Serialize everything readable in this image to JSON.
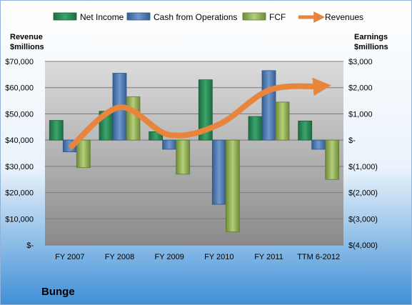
{
  "chart_data": {
    "type": "bar",
    "title": "Bunge",
    "left_axis_label": [
      "Revenue",
      "$millions"
    ],
    "right_axis_label": [
      "Earnings",
      "$millions"
    ],
    "categories": [
      "FY 2007",
      "FY 2008",
      "FY 2009",
      "FY 2010",
      "FY 2011",
      "TTM 6-2012"
    ],
    "left_ylim": [
      0,
      70000
    ],
    "right_ylim": [
      -4000,
      3000
    ],
    "left_ticks": [
      "$-",
      "$10,000",
      "$20,000",
      "$30,000",
      "$40,000",
      "$50,000",
      "$60,000",
      "$70,000"
    ],
    "right_ticks": [
      "$(4,000)",
      "$(3,000)",
      "$(2,000)",
      "$(1,000)",
      "$-",
      "$1,000",
      "$2,000",
      "$3,000"
    ],
    "grid": true,
    "legend_position": "top",
    "series": [
      {
        "name": "Net Income",
        "axis": "right",
        "color": "#2e8b57",
        "values": [
          750,
          1100,
          320,
          2300,
          900,
          730
        ]
      },
      {
        "name": "Cash from Operations",
        "axis": "right",
        "color": "#4f81bd",
        "values": [
          -450,
          2550,
          -350,
          -2450,
          2650,
          -350
        ]
      },
      {
        "name": "FCF",
        "axis": "right",
        "color": "#9bbb59",
        "values": [
          -1050,
          1650,
          -1300,
          -3500,
          1450,
          -1500
        ]
      },
      {
        "name": "Revenues",
        "axis": "left",
        "type": "line",
        "color": "#e8853d",
        "values": [
          37000,
          52500,
          42000,
          46000,
          59000,
          60500
        ]
      }
    ]
  }
}
